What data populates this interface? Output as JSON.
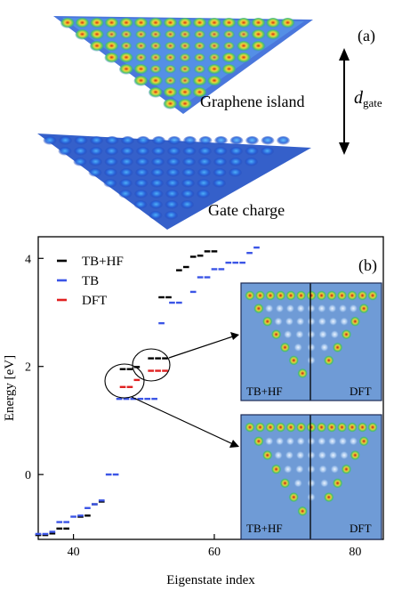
{
  "panel_a": {
    "label": "(a)",
    "island_label": "Graphene island",
    "gate_label": "Gate charge",
    "distance_symbol": "d",
    "distance_subscript": "gate"
  },
  "chart_data": {
    "type": "scatter",
    "panel_label": "(b)",
    "xlabel": "Eigenstate index",
    "ylabel": "Energy [eV]",
    "xlim": [
      35,
      84
    ],
    "ylim": [
      -1.2,
      4.4
    ],
    "xticks": [
      40,
      60,
      80
    ],
    "yticks": [
      0,
      2,
      4
    ],
    "grid": false,
    "legend_position": "top-left",
    "marker": "short horizontal dash",
    "series": [
      {
        "name": "TB+HF",
        "color": "#000000",
        "points": [
          {
            "x": 35,
            "y": -1.12
          },
          {
            "x": 36,
            "y": -1.12
          },
          {
            "x": 37,
            "y": -1.09
          },
          {
            "x": 38,
            "y": -1.0
          },
          {
            "x": 39,
            "y": -1.0
          },
          {
            "x": 41,
            "y": -0.78
          },
          {
            "x": 42,
            "y": -0.76
          },
          {
            "x": 43,
            "y": -0.55
          },
          {
            "x": 44,
            "y": -0.5
          },
          {
            "x": 47,
            "y": 1.95
          },
          {
            "x": 48,
            "y": 1.95
          },
          {
            "x": 49,
            "y": 1.99
          },
          {
            "x": 51,
            "y": 2.15
          },
          {
            "x": 52,
            "y": 2.15
          },
          {
            "x": 53,
            "y": 2.15
          },
          {
            "x": 52.5,
            "y": 3.28
          },
          {
            "x": 53.5,
            "y": 3.28
          },
          {
            "x": 55,
            "y": 3.78
          },
          {
            "x": 56,
            "y": 3.84
          },
          {
            "x": 57,
            "y": 4.03
          },
          {
            "x": 58,
            "y": 4.05
          },
          {
            "x": 59,
            "y": 4.13
          },
          {
            "x": 60,
            "y": 4.13
          }
        ]
      },
      {
        "name": "TB",
        "color": "#3b55e6",
        "points": [
          {
            "x": 35,
            "y": -1.1
          },
          {
            "x": 36,
            "y": -1.1
          },
          {
            "x": 37,
            "y": -1.06
          },
          {
            "x": 38,
            "y": -0.88
          },
          {
            "x": 39,
            "y": -0.88
          },
          {
            "x": 40,
            "y": -0.78
          },
          {
            "x": 41,
            "y": -0.76
          },
          {
            "x": 42,
            "y": -0.62
          },
          {
            "x": 43,
            "y": -0.55
          },
          {
            "x": 44,
            "y": -0.48
          },
          {
            "x": 45,
            "y": 0.0
          },
          {
            "x": 46,
            "y": 0.0
          },
          {
            "x": 46.5,
            "y": 1.4
          },
          {
            "x": 47.5,
            "y": 1.4
          },
          {
            "x": 48.5,
            "y": 1.4
          },
          {
            "x": 49.5,
            "y": 1.4
          },
          {
            "x": 50.5,
            "y": 1.4
          },
          {
            "x": 51.5,
            "y": 1.4
          },
          {
            "x": 52.5,
            "y": 2.8
          },
          {
            "x": 54,
            "y": 3.18
          },
          {
            "x": 55,
            "y": 3.18
          },
          {
            "x": 57,
            "y": 3.38
          },
          {
            "x": 58,
            "y": 3.65
          },
          {
            "x": 59,
            "y": 3.65
          },
          {
            "x": 60,
            "y": 3.8
          },
          {
            "x": 61,
            "y": 3.8
          },
          {
            "x": 62,
            "y": 3.92
          },
          {
            "x": 63,
            "y": 3.92
          },
          {
            "x": 64,
            "y": 3.92
          },
          {
            "x": 65,
            "y": 4.1
          },
          {
            "x": 66,
            "y": 4.2
          }
        ]
      },
      {
        "name": "DFT",
        "color": "#e02020",
        "points": [
          {
            "x": 47,
            "y": 1.62
          },
          {
            "x": 48,
            "y": 1.62
          },
          {
            "x": 49,
            "y": 1.75
          },
          {
            "x": 51,
            "y": 1.92
          },
          {
            "x": 52,
            "y": 1.92
          },
          {
            "x": 53,
            "y": 1.92
          }
        ]
      }
    ],
    "insets": [
      {
        "left_label": "TB+HF",
        "right_label": "DFT"
      },
      {
        "left_label": "TB+HF",
        "right_label": "DFT"
      }
    ]
  }
}
